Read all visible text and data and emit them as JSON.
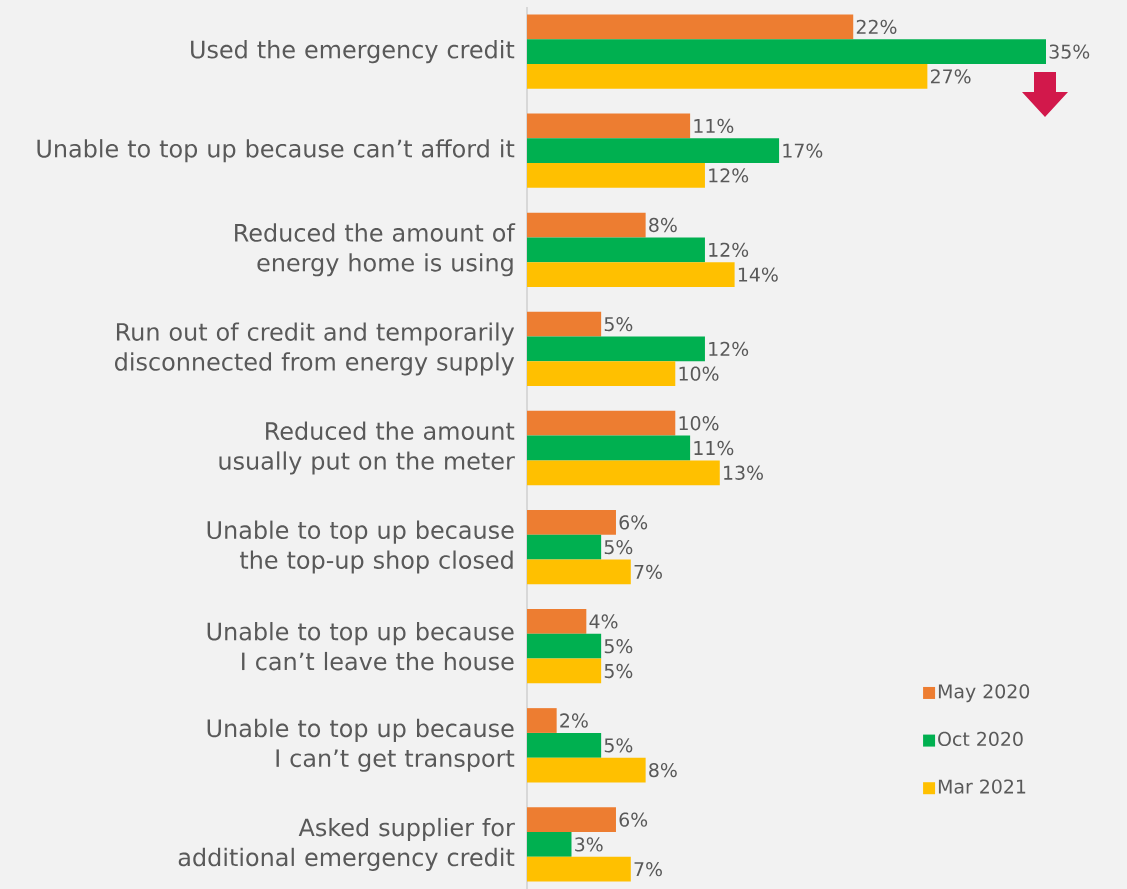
{
  "chart_data": {
    "type": "bar",
    "orientation": "horizontal",
    "legend": "bottom right",
    "categories": [
      "Used the emergency credit",
      "Unable to top up because can’t afford it",
      "Reduced the amount of energy home is using",
      "Run out of credit and temporarily disconnected from energy supply",
      "Reduced the amount usually put on the meter",
      "Unable to top up because the top-up shop closed",
      "Unable to top up because I can’t leave the house",
      "Unable to top up because I can’t get transport",
      "Asked supplier for additional emergency credit"
    ],
    "series": [
      {
        "name": "May 2020",
        "color": "#ed7d31",
        "values": [
          22,
          11,
          8,
          5,
          10,
          6,
          4,
          2,
          6
        ],
        "value_labels": [
          "22%",
          "11%",
          "8%",
          "5%",
          "10%",
          "6%",
          "4%",
          "2%",
          "6%"
        ]
      },
      {
        "name": "Oct 2020",
        "color": "#00b050",
        "values": [
          35,
          17,
          12,
          12,
          11,
          5,
          5,
          5,
          3
        ],
        "value_labels": [
          "35%",
          "17%",
          "12%",
          "12%",
          "11%",
          "5%",
          "5%",
          "5%",
          "3%"
        ]
      },
      {
        "name": "Mar 2021",
        "color": "#ffc000",
        "values": [
          27,
          12,
          14,
          10,
          13,
          7,
          5,
          8,
          7
        ],
        "value_labels": [
          "27%",
          "12%",
          "14%",
          "10%",
          "13%",
          "7%",
          "5%",
          "8%",
          "7%"
        ]
      }
    ]
  }
}
